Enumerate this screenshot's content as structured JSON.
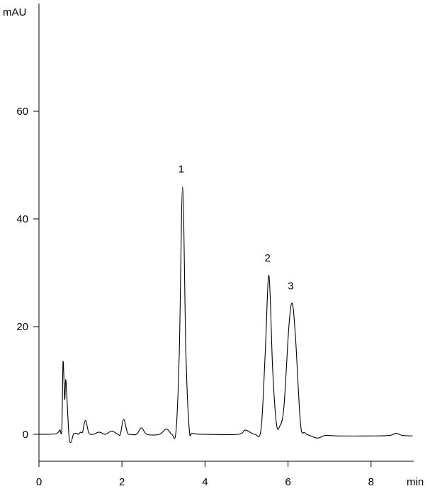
{
  "chart_data": {
    "type": "line",
    "title": "",
    "xlabel": "min",
    "ylabel": "mAU",
    "xlim": [
      0,
      9
    ],
    "ylim": [
      -5,
      80
    ],
    "xticks": [
      0,
      2,
      4,
      6,
      8
    ],
    "yticks": [
      0,
      20,
      40,
      60
    ],
    "grid": false,
    "line_color": "#000000",
    "series": [
      {
        "x": [
          0,
          0.4,
          0.5,
          0.55,
          0.58,
          0.62,
          0.65,
          0.72,
          0.77,
          0.83,
          0.9,
          0.95,
          1.0,
          1.05,
          1.12,
          1.2,
          1.3,
          1.45,
          1.6,
          1.75,
          1.9,
          1.96,
          2.04,
          2.13,
          2.2,
          2.35,
          2.47,
          2.6,
          2.9,
          3.07,
          3.2,
          3.3,
          3.38,
          3.46,
          3.54,
          3.62,
          3.7,
          4.0,
          4.8,
          4.97,
          5.2,
          5.35,
          5.45,
          5.54,
          5.63,
          5.72,
          5.8,
          5.9,
          6.02,
          6.1,
          6.18,
          6.3,
          6.4,
          6.55,
          6.72,
          6.9,
          7.2,
          8.0,
          8.45,
          8.6,
          8.75,
          9.0
        ],
        "y": [
          0,
          0.1,
          0.8,
          1.0,
          13.5,
          6.5,
          10,
          0,
          -1.5,
          0,
          0.2,
          0,
          0.4,
          0.4,
          2.6,
          0.3,
          0,
          0.4,
          0,
          0.6,
          0,
          0,
          2.8,
          0.3,
          0,
          0,
          1.2,
          0,
          0,
          1.0,
          0,
          0.5,
          15,
          46,
          15,
          1,
          0.2,
          0,
          0,
          0.8,
          0,
          1,
          15,
          29.5,
          12,
          2,
          1.5,
          5,
          20,
          24.3,
          18,
          2,
          0.3,
          -0.3,
          -0.7,
          -0.2,
          -0.3,
          -0.3,
          -0.2,
          0.2,
          -0.2,
          -0.3
        ]
      }
    ],
    "annotations": [
      {
        "text": "1",
        "x": 3.46,
        "y": 46
      },
      {
        "text": "2",
        "x": 5.54,
        "y": 29.5
      },
      {
        "text": "3",
        "x": 6.1,
        "y": 24.3
      }
    ]
  }
}
